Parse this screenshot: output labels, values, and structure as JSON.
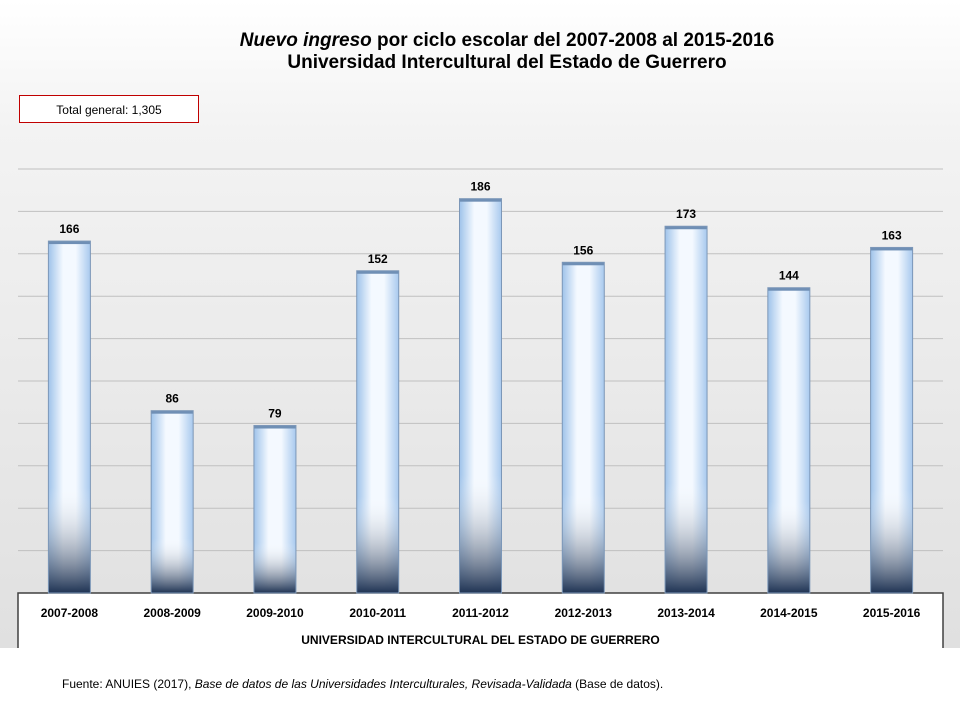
{
  "title": {
    "italic_part": "Nuevo ingreso",
    "rest_part": " por ciclo escolar del 2007-2008 al 2015-2016",
    "line2": "Universidad Intercultural del Estado de Guerrero"
  },
  "total_box": "Total general: 1,305",
  "source": {
    "prefix": "Fuente: ANUIES (2017), ",
    "italic": "Base de datos de las Universidades Interculturales, Revisada-Validada",
    "suffix": " (Base de datos)."
  },
  "chart_data": {
    "type": "bar",
    "title": "Nuevo ingreso por ciclo escolar del 2007-2008 al 2015-2016 Universidad Intercultural del Estado de Guerrero",
    "categories": [
      "2007-2008",
      "2008-2009",
      "2009-2010",
      "2010-2011",
      "2011-2012",
      "2012-2013",
      "2013-2014",
      "2014-2015",
      "2015-2016"
    ],
    "values": [
      166,
      86,
      79,
      152,
      186,
      156,
      173,
      144,
      163
    ],
    "xlabel": "UNIVERSIDAD INTERCULTURAL DEL ESTADO DE GUERRERO",
    "ylabel": "",
    "ylim": [
      0,
      200
    ],
    "grid": true,
    "data_labels": true,
    "colors": {
      "bar_light": "#f4f9ff",
      "bar_mid": "#bcd9f5",
      "bar_dark": "#1f3353",
      "grid": "#c0c0c0",
      "axis": "#404040"
    }
  }
}
